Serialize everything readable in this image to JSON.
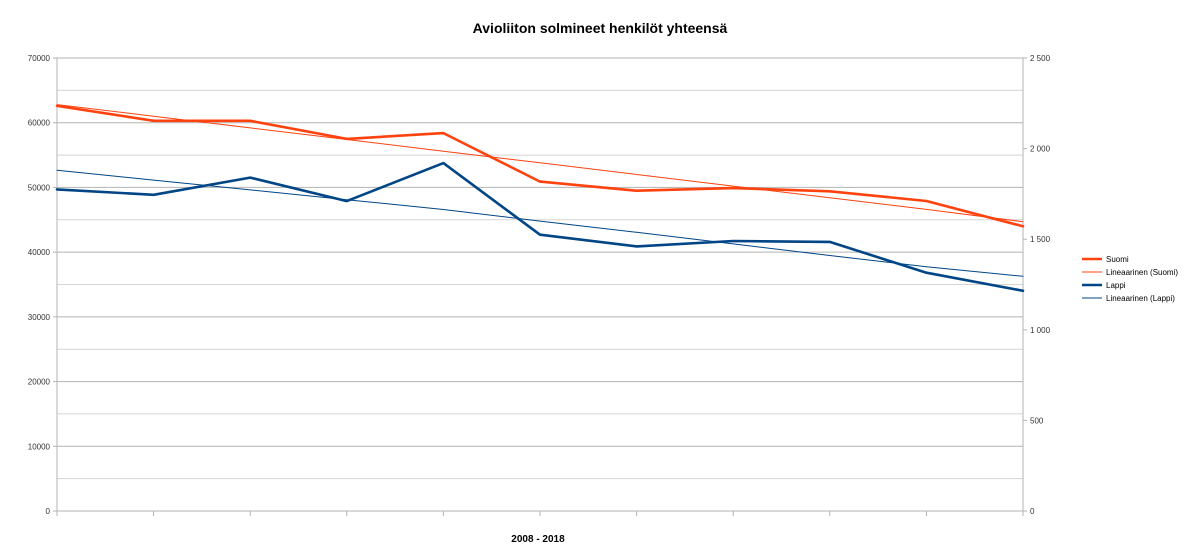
{
  "chart_data": {
    "type": "line",
    "title": "Avioliiton solmineet henkilöt yhteensä",
    "xlabel": "2008 - 2018",
    "ylabel": "",
    "x": [
      0,
      1,
      2,
      3,
      4,
      5,
      6,
      7,
      8,
      9,
      10
    ],
    "ylim_left": [
      0,
      70000
    ],
    "ylim_right": [
      0,
      2500
    ],
    "left_ticks": [
      "0",
      "10000",
      "20000",
      "30000",
      "40000",
      "50000",
      "60000",
      "70000"
    ],
    "left_tick_values": [
      0,
      10000,
      20000,
      30000,
      40000,
      50000,
      60000,
      70000
    ],
    "right_ticks": [
      "0",
      "500",
      "1 000",
      "1 500",
      "2 000",
      "2 500"
    ],
    "right_tick_values": [
      0,
      500,
      1000,
      1500,
      2000,
      2500
    ],
    "grid": true,
    "legend_position": "right",
    "series": [
      {
        "name": "Suomi",
        "axis": "left",
        "color": "#ff420e",
        "style": "thick",
        "values": [
          62600,
          60300,
          60300,
          57500,
          58400,
          50900,
          49500,
          49900,
          49400,
          47900,
          44000
        ]
      },
      {
        "name": "Lineaarinen (Suomi)",
        "axis": "left",
        "color": "#ff420e",
        "style": "trend",
        "values": [
          62800,
          61000,
          59200,
          57400,
          55600,
          53800,
          52000,
          50200,
          48400,
          46600,
          44700
        ]
      },
      {
        "name": "Lappi",
        "axis": "right",
        "color": "#004586",
        "style": "thick",
        "values": [
          1775,
          1745,
          1840,
          1710,
          1920,
          1525,
          1460,
          1490,
          1485,
          1315,
          1215
        ]
      },
      {
        "name": "Lineaarinen (Lappi)",
        "axis": "right",
        "color": "#004586",
        "style": "trend",
        "values": [
          1880,
          1826,
          1772,
          1718,
          1664,
          1600,
          1538,
          1474,
          1410,
          1348,
          1295
        ]
      }
    ]
  }
}
